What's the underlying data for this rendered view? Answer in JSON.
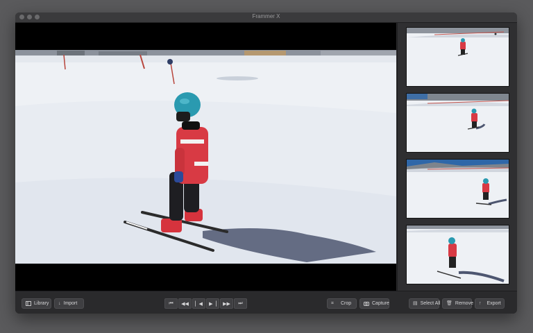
{
  "window": {
    "title": "Frammer X"
  },
  "toolbar": {
    "left": [
      {
        "label": "Library",
        "icon": "sidebar-icon"
      },
      {
        "label": "Import",
        "icon": "download-arrow-icon"
      }
    ],
    "transport": [
      {
        "name": "skip-to-start",
        "icon": "skip-start-icon"
      },
      {
        "name": "rewind",
        "icon": "rewind-icon"
      },
      {
        "name": "step-back",
        "icon": "step-back-icon"
      },
      {
        "name": "step-forward",
        "icon": "step-forward-icon"
      },
      {
        "name": "fast-forward",
        "icon": "fast-forward-icon"
      },
      {
        "name": "skip-to-end",
        "icon": "skip-end-icon"
      }
    ],
    "crop_label": "Crop",
    "capture_label": "Capture",
    "select_all_label": "Select All",
    "remove_label": "Remove",
    "export_label": "Export"
  },
  "frames": {
    "count": 4
  },
  "colors": {
    "snow": "#f1f3f6",
    "jacket": "#d83a44",
    "helmet": "#2a9ab0",
    "sky": "#2f67a8"
  }
}
